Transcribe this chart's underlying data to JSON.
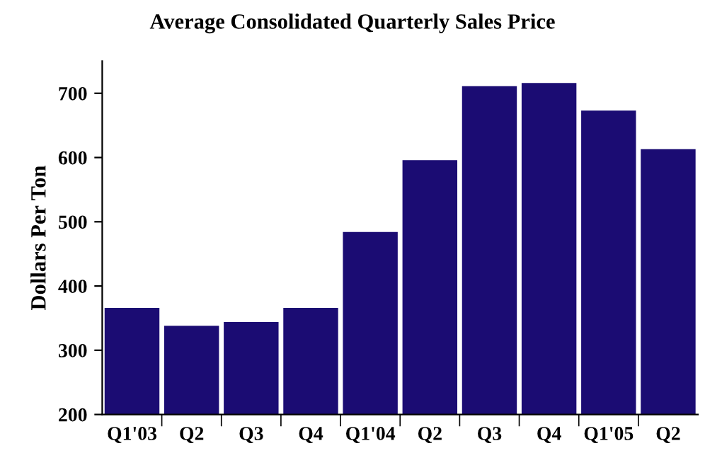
{
  "chart_data": {
    "type": "bar",
    "title": "Average Consolidated Quarterly Sales Price",
    "ylabel": "Dollars Per Ton",
    "categories": [
      "Q1'03",
      "Q2",
      "Q3",
      "Q4",
      "Q1'04",
      "Q2",
      "Q3",
      "Q4",
      "Q1'05",
      "Q2"
    ],
    "values": [
      366,
      338,
      344,
      366,
      484,
      596,
      711,
      716,
      673,
      613
    ],
    "color": "#1b0c73",
    "ylim": [
      200,
      750
    ],
    "yticks": [
      200,
      300,
      400,
      500,
      600,
      700
    ],
    "grid": false,
    "legend": false
  }
}
